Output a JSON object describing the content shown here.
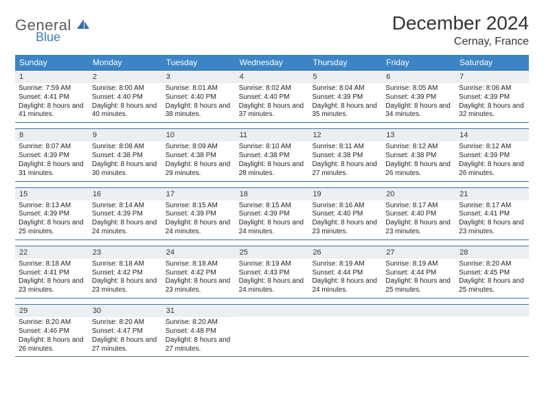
{
  "brand": {
    "name_gray": "General",
    "name_blue": "Blue"
  },
  "title": "December 2024",
  "location": "Cernay, France",
  "colors": {
    "header_bg": "#3b85c6",
    "daynum_bg": "#eceff1",
    "week_border": "#3b6fa2",
    "logo_blue": "#3b7ec4",
    "logo_gray": "#5a5a5a",
    "text": "#222222",
    "page_bg": "#ffffff"
  },
  "weekdays": [
    "Sunday",
    "Monday",
    "Tuesday",
    "Wednesday",
    "Thursday",
    "Friday",
    "Saturday"
  ],
  "weeks": [
    [
      {
        "n": "1",
        "sr": "7:59 AM",
        "ss": "4:41 PM",
        "dl": "8 hours and 41 minutes."
      },
      {
        "n": "2",
        "sr": "8:00 AM",
        "ss": "4:40 PM",
        "dl": "8 hours and 40 minutes."
      },
      {
        "n": "3",
        "sr": "8:01 AM",
        "ss": "4:40 PM",
        "dl": "8 hours and 38 minutes."
      },
      {
        "n": "4",
        "sr": "8:02 AM",
        "ss": "4:40 PM",
        "dl": "8 hours and 37 minutes."
      },
      {
        "n": "5",
        "sr": "8:04 AM",
        "ss": "4:39 PM",
        "dl": "8 hours and 35 minutes."
      },
      {
        "n": "6",
        "sr": "8:05 AM",
        "ss": "4:39 PM",
        "dl": "8 hours and 34 minutes."
      },
      {
        "n": "7",
        "sr": "8:06 AM",
        "ss": "4:39 PM",
        "dl": "8 hours and 32 minutes."
      }
    ],
    [
      {
        "n": "8",
        "sr": "8:07 AM",
        "ss": "4:39 PM",
        "dl": "8 hours and 31 minutes."
      },
      {
        "n": "9",
        "sr": "8:08 AM",
        "ss": "4:38 PM",
        "dl": "8 hours and 30 minutes."
      },
      {
        "n": "10",
        "sr": "8:09 AM",
        "ss": "4:38 PM",
        "dl": "8 hours and 29 minutes."
      },
      {
        "n": "11",
        "sr": "8:10 AM",
        "ss": "4:38 PM",
        "dl": "8 hours and 28 minutes."
      },
      {
        "n": "12",
        "sr": "8:11 AM",
        "ss": "4:38 PM",
        "dl": "8 hours and 27 minutes."
      },
      {
        "n": "13",
        "sr": "8:12 AM",
        "ss": "4:38 PM",
        "dl": "8 hours and 26 minutes."
      },
      {
        "n": "14",
        "sr": "8:12 AM",
        "ss": "4:39 PM",
        "dl": "8 hours and 26 minutes."
      }
    ],
    [
      {
        "n": "15",
        "sr": "8:13 AM",
        "ss": "4:39 PM",
        "dl": "8 hours and 25 minutes."
      },
      {
        "n": "16",
        "sr": "8:14 AM",
        "ss": "4:39 PM",
        "dl": "8 hours and 24 minutes."
      },
      {
        "n": "17",
        "sr": "8:15 AM",
        "ss": "4:39 PM",
        "dl": "8 hours and 24 minutes."
      },
      {
        "n": "18",
        "sr": "8:15 AM",
        "ss": "4:39 PM",
        "dl": "8 hours and 24 minutes."
      },
      {
        "n": "19",
        "sr": "8:16 AM",
        "ss": "4:40 PM",
        "dl": "8 hours and 23 minutes."
      },
      {
        "n": "20",
        "sr": "8:17 AM",
        "ss": "4:40 PM",
        "dl": "8 hours and 23 minutes."
      },
      {
        "n": "21",
        "sr": "8:17 AM",
        "ss": "4:41 PM",
        "dl": "8 hours and 23 minutes."
      }
    ],
    [
      {
        "n": "22",
        "sr": "8:18 AM",
        "ss": "4:41 PM",
        "dl": "8 hours and 23 minutes."
      },
      {
        "n": "23",
        "sr": "8:18 AM",
        "ss": "4:42 PM",
        "dl": "8 hours and 23 minutes."
      },
      {
        "n": "24",
        "sr": "8:18 AM",
        "ss": "4:42 PM",
        "dl": "8 hours and 23 minutes."
      },
      {
        "n": "25",
        "sr": "8:19 AM",
        "ss": "4:43 PM",
        "dl": "8 hours and 24 minutes."
      },
      {
        "n": "26",
        "sr": "8:19 AM",
        "ss": "4:44 PM",
        "dl": "8 hours and 24 minutes."
      },
      {
        "n": "27",
        "sr": "8:19 AM",
        "ss": "4:44 PM",
        "dl": "8 hours and 25 minutes."
      },
      {
        "n": "28",
        "sr": "8:20 AM",
        "ss": "4:45 PM",
        "dl": "8 hours and 25 minutes."
      }
    ],
    [
      {
        "n": "29",
        "sr": "8:20 AM",
        "ss": "4:46 PM",
        "dl": "8 hours and 26 minutes."
      },
      {
        "n": "30",
        "sr": "8:20 AM",
        "ss": "4:47 PM",
        "dl": "8 hours and 27 minutes."
      },
      {
        "n": "31",
        "sr": "8:20 AM",
        "ss": "4:48 PM",
        "dl": "8 hours and 27 minutes."
      },
      null,
      null,
      null,
      null
    ]
  ]
}
